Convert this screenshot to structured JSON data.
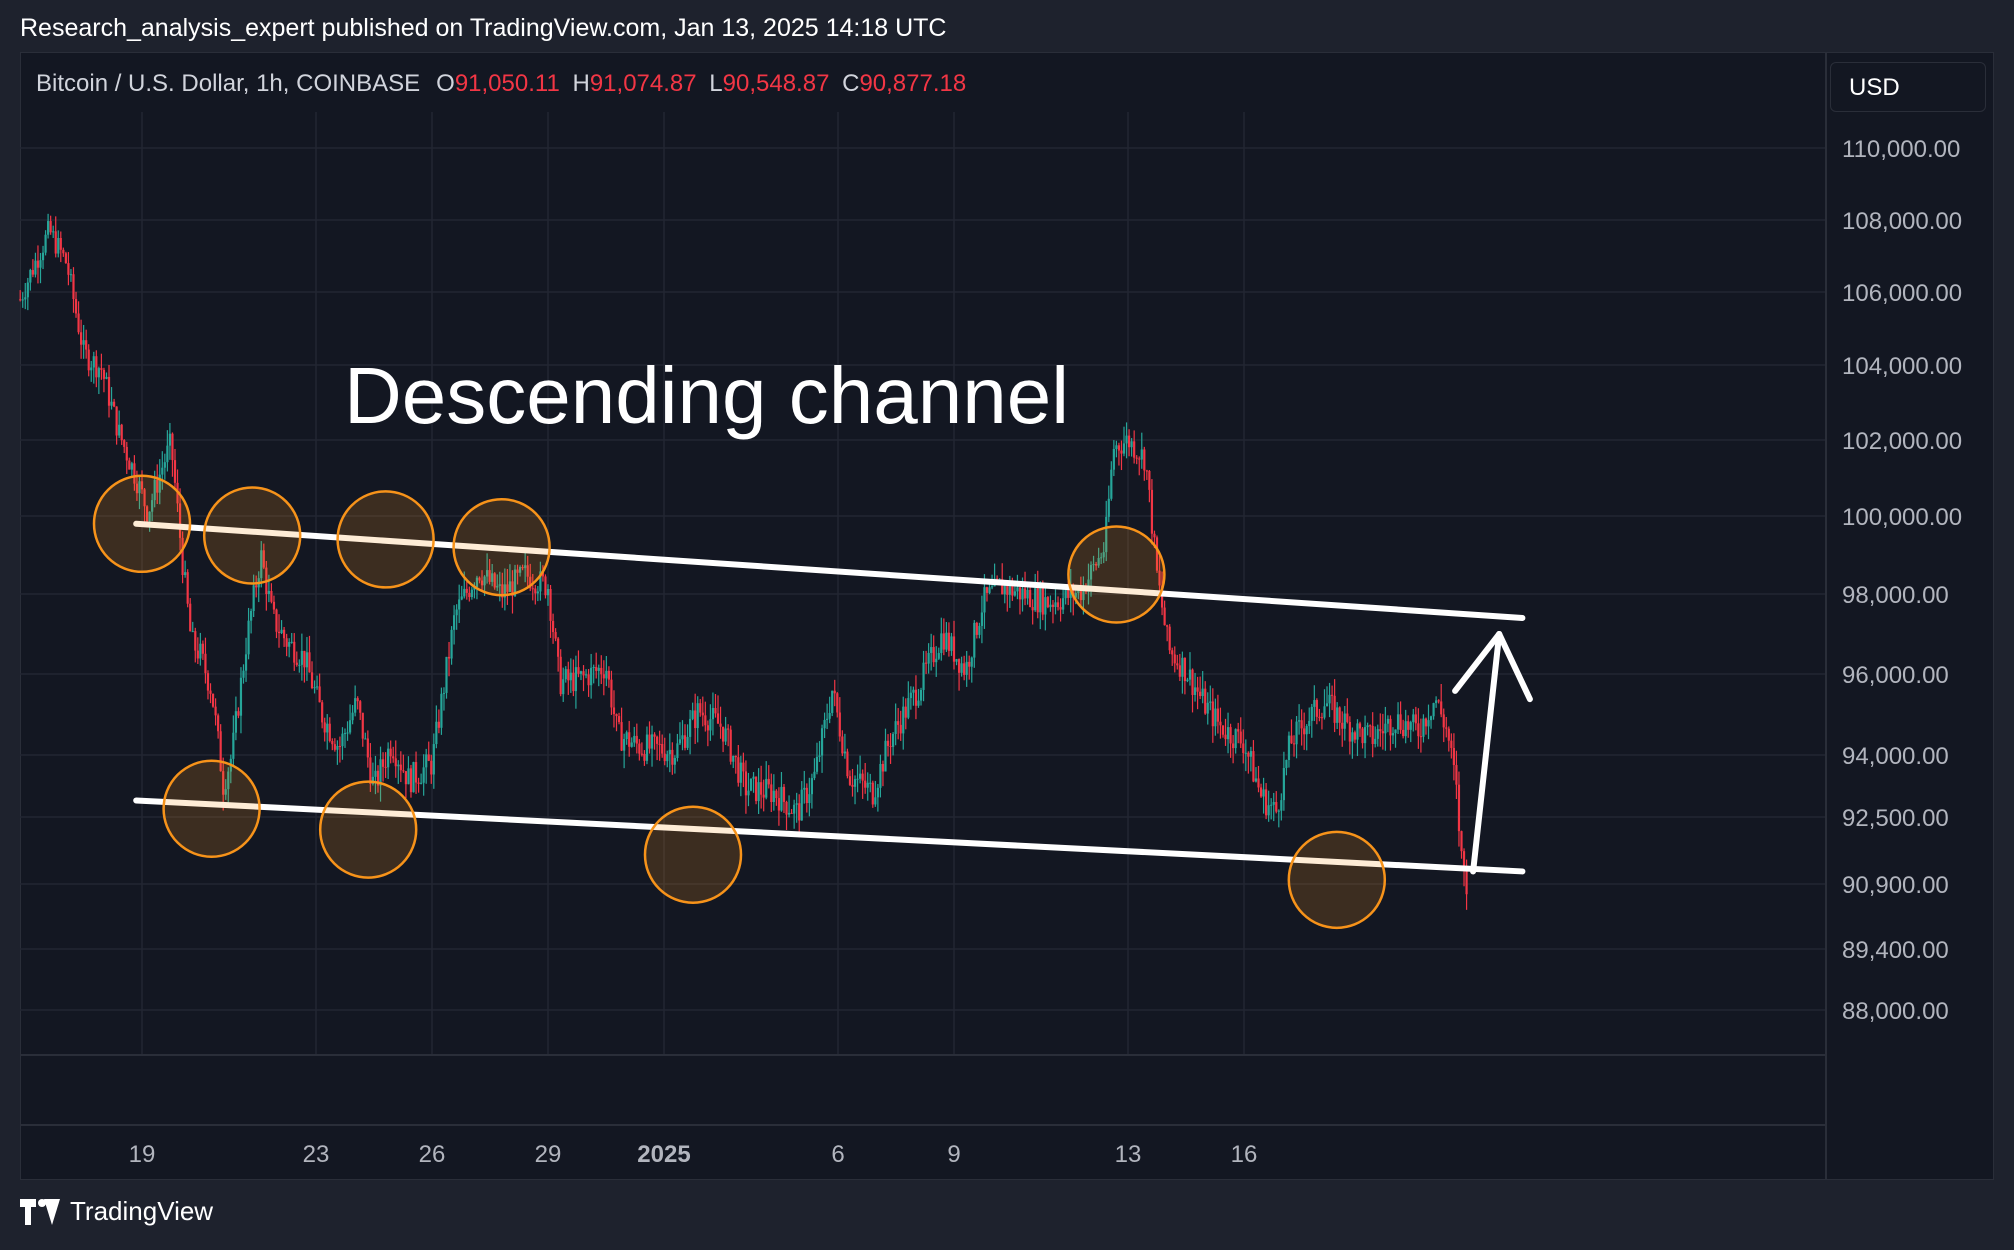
{
  "header": {
    "text": "Research_analysis_expert published on TradingView.com, Jan 13, 2025 14:18 UTC"
  },
  "legend": {
    "symbol": "Bitcoin / U.S. Dollar, 1h, COINBASE",
    "o_key": "O",
    "o_val": "91,050.11",
    "h_key": "H",
    "h_val": "91,074.87",
    "l_key": "L",
    "l_val": "90,548.87",
    "c_key": "C",
    "c_val": "90,877.18"
  },
  "currency": "USD",
  "annotation": "Descending channel",
  "footer": {
    "brand": "TradingView"
  },
  "colors": {
    "up": "#26a69a",
    "down": "#f23645",
    "circle": "#f7931a",
    "line": "#ffffff",
    "bg": "#131722"
  },
  "chart_data": {
    "type": "candlestick",
    "title": "Bitcoin / U.S. Dollar, 1h, COINBASE",
    "x_ticks": [
      "19",
      "23",
      "26",
      "29",
      "2025",
      "6",
      "9",
      "13",
      "16"
    ],
    "y_ticks": [
      "110,000.00",
      "108,000.00",
      "106,000.00",
      "104,000.00",
      "102,000.00",
      "100,000.00",
      "98,000.00",
      "96,000.00",
      "94,000.00",
      "92,500.00",
      "90,900.00",
      "89,400.00",
      "88,000.00"
    ],
    "price_path": [
      [
        -2.1,
        105800
      ],
      [
        -1.9,
        106600
      ],
      [
        -1.6,
        107700
      ],
      [
        -1.3,
        106800
      ],
      [
        -1.0,
        104300
      ],
      [
        -0.7,
        103900
      ],
      [
        -0.4,
        102200
      ],
      [
        -0.1,
        101000
      ],
      [
        0.1,
        100100
      ],
      [
        0.35,
        101300
      ],
      [
        0.5,
        101900
      ],
      [
        0.7,
        98800
      ],
      [
        0.85,
        96800
      ],
      [
        1.0,
        96500
      ],
      [
        1.2,
        95600
      ],
      [
        1.4,
        93300
      ],
      [
        1.55,
        94000
      ],
      [
        1.8,
        96800
      ],
      [
        2.05,
        99000
      ],
      [
        2.25,
        97400
      ],
      [
        2.5,
        96800
      ],
      [
        2.8,
        96400
      ],
      [
        3.1,
        95000
      ],
      [
        3.4,
        94200
      ],
      [
        3.7,
        95300
      ],
      [
        4.0,
        93200
      ],
      [
        4.3,
        94300
      ],
      [
        4.6,
        93400
      ],
      [
        5.0,
        93800
      ],
      [
        5.4,
        97500
      ],
      [
        5.8,
        98600
      ],
      [
        6.2,
        98000
      ],
      [
        6.6,
        98500
      ],
      [
        7.0,
        98200
      ],
      [
        7.2,
        95800
      ],
      [
        7.6,
        95900
      ],
      [
        8.0,
        96200
      ],
      [
        8.2,
        94500
      ],
      [
        8.6,
        94200
      ],
      [
        9.2,
        94100
      ],
      [
        9.6,
        95100
      ],
      [
        10.0,
        94700
      ],
      [
        10.4,
        93200
      ],
      [
        10.9,
        93100
      ],
      [
        11.3,
        92600
      ],
      [
        11.6,
        93500
      ],
      [
        11.9,
        95600
      ],
      [
        12.2,
        93500
      ],
      [
        12.6,
        93100
      ],
      [
        12.9,
        94400
      ],
      [
        13.4,
        95700
      ],
      [
        13.8,
        97000
      ],
      [
        14.2,
        96100
      ],
      [
        14.5,
        97800
      ],
      [
        14.8,
        98200
      ],
      [
        15.2,
        98000
      ],
      [
        15.6,
        97800
      ],
      [
        15.9,
        97900
      ],
      [
        16.2,
        98100
      ],
      [
        16.6,
        99200
      ],
      [
        16.75,
        101800
      ],
      [
        17.0,
        102000
      ],
      [
        17.3,
        101500
      ],
      [
        17.5,
        98500
      ],
      [
        17.7,
        96600
      ],
      [
        18.0,
        96100
      ],
      [
        18.3,
        95300
      ],
      [
        18.6,
        94700
      ],
      [
        19.0,
        94300
      ],
      [
        19.3,
        93000
      ],
      [
        19.55,
        92600
      ],
      [
        19.8,
        94300
      ],
      [
        20.1,
        94900
      ],
      [
        20.4,
        95300
      ],
      [
        20.8,
        94700
      ],
      [
        21.2,
        94400
      ],
      [
        21.6,
        94900
      ],
      [
        22.0,
        94600
      ],
      [
        22.3,
        95400
      ],
      [
        22.5,
        94600
      ],
      [
        22.65,
        93300
      ],
      [
        22.75,
        91500
      ],
      [
        22.85,
        90900
      ]
    ],
    "channel_upper": [
      [
        -0.1,
        99800
      ],
      [
        23.8,
        97400
      ]
    ],
    "channel_lower": [
      [
        -0.1,
        92900
      ],
      [
        23.8,
        91200
      ]
    ],
    "arrow": [
      [
        22.95,
        91200
      ],
      [
        23.4,
        97000
      ]
    ],
    "touch_points": [
      [
        0.0,
        99800
      ],
      [
        1.9,
        99500
      ],
      [
        4.2,
        99400
      ],
      [
        6.2,
        99200
      ],
      [
        16.8,
        98500
      ],
      [
        1.2,
        92700
      ],
      [
        3.9,
        92200
      ],
      [
        9.5,
        91600
      ],
      [
        20.6,
        91000
      ]
    ]
  }
}
